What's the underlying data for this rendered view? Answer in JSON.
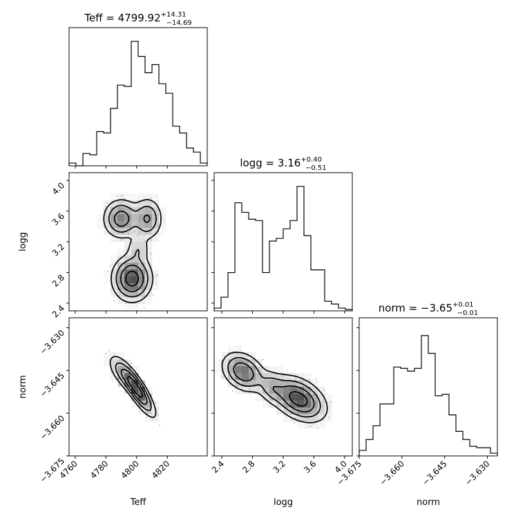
{
  "chart_data": {
    "type": "corner",
    "parameters": [
      "Teff",
      "logg",
      "norm"
    ],
    "axis_labels": {
      "x": [
        "Teff",
        "logg",
        "norm"
      ],
      "y": [
        "logg",
        "norm"
      ]
    },
    "titles": [
      {
        "param": "Teff",
        "prefix": "Teff = ",
        "value": "4799.92",
        "plus": "+14.31",
        "minus": "−14.69"
      },
      {
        "param": "logg",
        "prefix": "logg = ",
        "value": "3.16",
        "plus": "+0.40",
        "minus": "−0.51"
      },
      {
        "param": "norm",
        "prefix": "norm = ",
        "value": "−3.65",
        "plus": "+0.01",
        "minus": "−0.01"
      }
    ],
    "ranges": {
      "Teff": [
        4756,
        4846
      ],
      "logg": [
        2.3,
        4.1
      ],
      "norm": [
        -3.675,
        -3.6265
      ]
    },
    "ticks": {
      "Teff": [
        {
          "v": 4760,
          "label": "4760"
        },
        {
          "v": 4780,
          "label": "4780"
        },
        {
          "v": 4800,
          "label": "4800"
        },
        {
          "v": 4820,
          "label": "4820"
        }
      ],
      "logg": [
        {
          "v": 2.4,
          "label": "2.4"
        },
        {
          "v": 2.8,
          "label": "2.8"
        },
        {
          "v": 3.2,
          "label": "3.2"
        },
        {
          "v": 3.6,
          "label": "3.6"
        },
        {
          "v": 4.0,
          "label": "4.0"
        }
      ],
      "norm": [
        {
          "v": -3.675,
          "label": "−3.675"
        },
        {
          "v": -3.66,
          "label": "−3.660"
        },
        {
          "v": -3.645,
          "label": "−3.645"
        },
        {
          "v": -3.63,
          "label": "−3.630"
        }
      ]
    },
    "histograms": {
      "Teff": {
        "bin_start": 4756,
        "bin_width": 4.5,
        "counts": [
          0.02,
          0.0,
          0.09,
          0.08,
          0.25,
          0.24,
          0.42,
          0.59,
          0.58,
          0.91,
          0.8,
          0.68,
          0.74,
          0.6,
          0.53,
          0.29,
          0.24,
          0.13,
          0.1,
          0.02
        ],
        "ymax": 1.0
      },
      "logg": {
        "bin_start": 2.3,
        "bin_width": 0.09,
        "counts": [
          0.02,
          0.1,
          0.28,
          0.79,
          0.72,
          0.67,
          0.66,
          0.28,
          0.51,
          0.53,
          0.6,
          0.66,
          0.91,
          0.55,
          0.3,
          0.3,
          0.07,
          0.05,
          0.02,
          0.01
        ],
        "ymax": 1.0
      },
      "norm": {
        "bin_start": -3.675,
        "bin_width": 0.002425,
        "counts": [
          0.04,
          0.12,
          0.22,
          0.38,
          0.38,
          0.65,
          0.64,
          0.62,
          0.64,
          0.88,
          0.75,
          0.44,
          0.45,
          0.3,
          0.18,
          0.12,
          0.07,
          0.06,
          0.06,
          0.02
        ],
        "ymax": 1.0
      }
    },
    "pairs": [
      {
        "x": "Teff",
        "y": "logg",
        "modes": [
          {
            "mx": 4797,
            "my": 2.72,
            "sx": 6.5,
            "sy": 0.15,
            "w": 1.0
          },
          {
            "mx": 4790,
            "my": 3.5,
            "sx": 6.0,
            "sy": 0.13,
            "w": 0.7
          },
          {
            "mx": 4807,
            "my": 3.5,
            "sx": 5.0,
            "sy": 0.14,
            "w": 0.55
          },
          {
            "mx": 4801,
            "my": 3.1,
            "sx": 4.0,
            "sy": 0.1,
            "w": 0.25
          }
        ]
      },
      {
        "x": "Teff",
        "y": "norm",
        "modes": [
          {
            "mx": 4800,
            "my": -3.6515,
            "sx": 6.0,
            "sy": 0.0048,
            "rho": -0.85,
            "w": 1.0
          },
          {
            "mx": 4790,
            "my": -3.646,
            "sx": 5.0,
            "sy": 0.0035,
            "rho": -0.7,
            "w": 0.3
          }
        ]
      },
      {
        "x": "logg",
        "y": "norm",
        "modes": [
          {
            "mx": 2.68,
            "my": -3.6455,
            "sx": 0.14,
            "sy": 0.0035,
            "rho": -0.3,
            "w": 0.8
          },
          {
            "mx": 3.4,
            "my": -3.655,
            "sx": 0.18,
            "sy": 0.004,
            "rho": -0.4,
            "w": 1.0
          },
          {
            "mx": 3.05,
            "my": -3.651,
            "sx": 0.1,
            "sy": 0.003,
            "rho": -0.2,
            "w": 0.35
          }
        ]
      }
    ],
    "contour_levels": [
      0.12,
      0.3,
      0.55,
      0.85
    ],
    "grid": false
  }
}
